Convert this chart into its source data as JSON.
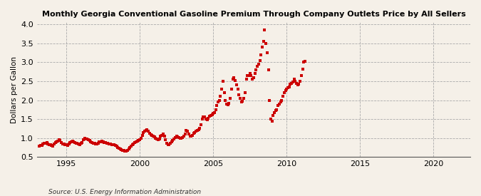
{
  "title": "Monthly Georgia Conventional Gasoline Premium Through Company Outlets Price by All Sellers",
  "ylabel": "Dollars per Gallon",
  "source": "Source: U.S. Energy Information Administration",
  "background_color": "#f5f0e8",
  "point_color": "#cc0000",
  "ylim": [
    0.5,
    4.05
  ],
  "xlim": [
    1993.0,
    2022.5
  ],
  "yticks": [
    0.5,
    1.0,
    1.5,
    2.0,
    2.5,
    3.0,
    3.5,
    4.0
  ],
  "xticks": [
    1995,
    2000,
    2005,
    2010,
    2015,
    2020
  ],
  "data": [
    [
      1993.17,
      0.79
    ],
    [
      1993.25,
      0.8
    ],
    [
      1993.33,
      0.81
    ],
    [
      1993.42,
      0.84
    ],
    [
      1993.5,
      0.86
    ],
    [
      1993.58,
      0.87
    ],
    [
      1993.67,
      0.88
    ],
    [
      1993.75,
      0.85
    ],
    [
      1993.83,
      0.83
    ],
    [
      1993.92,
      0.82
    ],
    [
      1994.0,
      0.8
    ],
    [
      1994.08,
      0.79
    ],
    [
      1994.17,
      0.84
    ],
    [
      1994.25,
      0.88
    ],
    [
      1994.33,
      0.9
    ],
    [
      1994.42,
      0.92
    ],
    [
      1994.5,
      0.95
    ],
    [
      1994.58,
      0.93
    ],
    [
      1994.67,
      0.88
    ],
    [
      1994.75,
      0.85
    ],
    [
      1994.83,
      0.84
    ],
    [
      1994.92,
      0.83
    ],
    [
      1995.0,
      0.82
    ],
    [
      1995.08,
      0.81
    ],
    [
      1995.17,
      0.85
    ],
    [
      1995.25,
      0.88
    ],
    [
      1995.33,
      0.9
    ],
    [
      1995.42,
      0.92
    ],
    [
      1995.5,
      0.91
    ],
    [
      1995.58,
      0.89
    ],
    [
      1995.67,
      0.87
    ],
    [
      1995.75,
      0.86
    ],
    [
      1995.83,
      0.84
    ],
    [
      1995.92,
      0.83
    ],
    [
      1996.0,
      0.86
    ],
    [
      1996.08,
      0.89
    ],
    [
      1996.17,
      0.95
    ],
    [
      1996.25,
      1.0
    ],
    [
      1996.33,
      0.98
    ],
    [
      1996.42,
      0.97
    ],
    [
      1996.5,
      0.96
    ],
    [
      1996.58,
      0.94
    ],
    [
      1996.67,
      0.9
    ],
    [
      1996.75,
      0.88
    ],
    [
      1996.83,
      0.87
    ],
    [
      1996.92,
      0.86
    ],
    [
      1997.0,
      0.85
    ],
    [
      1997.08,
      0.84
    ],
    [
      1997.17,
      0.87
    ],
    [
      1997.25,
      0.9
    ],
    [
      1997.33,
      0.91
    ],
    [
      1997.42,
      0.92
    ],
    [
      1997.5,
      0.91
    ],
    [
      1997.58,
      0.89
    ],
    [
      1997.67,
      0.88
    ],
    [
      1997.75,
      0.87
    ],
    [
      1997.83,
      0.86
    ],
    [
      1997.92,
      0.85
    ],
    [
      1998.0,
      0.84
    ],
    [
      1998.08,
      0.83
    ],
    [
      1998.17,
      0.82
    ],
    [
      1998.25,
      0.82
    ],
    [
      1998.33,
      0.8
    ],
    [
      1998.42,
      0.78
    ],
    [
      1998.5,
      0.76
    ],
    [
      1998.58,
      0.74
    ],
    [
      1998.67,
      0.72
    ],
    [
      1998.75,
      0.7
    ],
    [
      1998.83,
      0.68
    ],
    [
      1998.92,
      0.67
    ],
    [
      1999.0,
      0.66
    ],
    [
      1999.08,
      0.65
    ],
    [
      1999.17,
      0.68
    ],
    [
      1999.25,
      0.72
    ],
    [
      1999.33,
      0.75
    ],
    [
      1999.42,
      0.78
    ],
    [
      1999.5,
      0.82
    ],
    [
      1999.58,
      0.85
    ],
    [
      1999.67,
      0.88
    ],
    [
      1999.75,
      0.9
    ],
    [
      1999.83,
      0.92
    ],
    [
      1999.92,
      0.94
    ],
    [
      2000.0,
      0.96
    ],
    [
      2000.08,
      1.0
    ],
    [
      2000.17,
      1.08
    ],
    [
      2000.25,
      1.15
    ],
    [
      2000.33,
      1.18
    ],
    [
      2000.42,
      1.2
    ],
    [
      2000.5,
      1.22
    ],
    [
      2000.58,
      1.19
    ],
    [
      2000.67,
      1.12
    ],
    [
      2000.75,
      1.09
    ],
    [
      2000.83,
      1.07
    ],
    [
      2000.92,
      1.05
    ],
    [
      2001.0,
      1.03
    ],
    [
      2001.08,
      1.0
    ],
    [
      2001.17,
      0.98
    ],
    [
      2001.25,
      0.95
    ],
    [
      2001.33,
      0.97
    ],
    [
      2001.42,
      1.05
    ],
    [
      2001.5,
      1.08
    ],
    [
      2001.58,
      1.1
    ],
    [
      2001.67,
      1.05
    ],
    [
      2001.75,
      0.96
    ],
    [
      2001.83,
      0.87
    ],
    [
      2001.92,
      0.83
    ],
    [
      2002.0,
      0.82
    ],
    [
      2002.08,
      0.86
    ],
    [
      2002.17,
      0.9
    ],
    [
      2002.25,
      0.94
    ],
    [
      2002.33,
      0.98
    ],
    [
      2002.42,
      1.02
    ],
    [
      2002.5,
      1.05
    ],
    [
      2002.58,
      1.03
    ],
    [
      2002.67,
      1.02
    ],
    [
      2002.75,
      1.0
    ],
    [
      2002.83,
      1.0
    ],
    [
      2002.92,
      1.02
    ],
    [
      2003.0,
      1.05
    ],
    [
      2003.08,
      1.1
    ],
    [
      2003.17,
      1.2
    ],
    [
      2003.25,
      1.18
    ],
    [
      2003.33,
      1.1
    ],
    [
      2003.42,
      1.05
    ],
    [
      2003.5,
      1.05
    ],
    [
      2003.58,
      1.08
    ],
    [
      2003.67,
      1.12
    ],
    [
      2003.75,
      1.15
    ],
    [
      2003.83,
      1.18
    ],
    [
      2003.92,
      1.2
    ],
    [
      2004.0,
      1.22
    ],
    [
      2004.08,
      1.25
    ],
    [
      2004.17,
      1.35
    ],
    [
      2004.25,
      1.5
    ],
    [
      2004.33,
      1.55
    ],
    [
      2004.42,
      1.55
    ],
    [
      2004.5,
      1.5
    ],
    [
      2004.58,
      1.48
    ],
    [
      2004.67,
      1.52
    ],
    [
      2004.75,
      1.58
    ],
    [
      2004.83,
      1.6
    ],
    [
      2004.92,
      1.62
    ],
    [
      2005.0,
      1.65
    ],
    [
      2005.08,
      1.68
    ],
    [
      2005.17,
      1.75
    ],
    [
      2005.25,
      1.85
    ],
    [
      2005.33,
      1.95
    ],
    [
      2005.42,
      2.0
    ],
    [
      2005.5,
      2.1
    ],
    [
      2005.58,
      2.3
    ],
    [
      2005.67,
      2.5
    ],
    [
      2005.75,
      2.2
    ],
    [
      2005.83,
      2.0
    ],
    [
      2005.92,
      1.9
    ],
    [
      2006.0,
      1.88
    ],
    [
      2006.08,
      1.92
    ],
    [
      2006.17,
      2.05
    ],
    [
      2006.25,
      2.3
    ],
    [
      2006.33,
      2.55
    ],
    [
      2006.42,
      2.6
    ],
    [
      2006.5,
      2.52
    ],
    [
      2006.58,
      2.4
    ],
    [
      2006.67,
      2.3
    ],
    [
      2006.75,
      2.15
    ],
    [
      2006.83,
      2.05
    ],
    [
      2006.92,
      1.95
    ],
    [
      2007.0,
      1.98
    ],
    [
      2007.08,
      2.05
    ],
    [
      2007.17,
      2.2
    ],
    [
      2007.25,
      2.55
    ],
    [
      2007.33,
      2.65
    ],
    [
      2007.42,
      2.65
    ],
    [
      2007.5,
      2.7
    ],
    [
      2007.58,
      2.65
    ],
    [
      2007.67,
      2.55
    ],
    [
      2007.75,
      2.6
    ],
    [
      2007.83,
      2.7
    ],
    [
      2007.92,
      2.8
    ],
    [
      2008.0,
      2.9
    ],
    [
      2008.08,
      2.95
    ],
    [
      2008.17,
      3.05
    ],
    [
      2008.25,
      3.2
    ],
    [
      2008.33,
      3.4
    ],
    [
      2008.42,
      3.55
    ],
    [
      2008.5,
      3.85
    ],
    [
      2008.58,
      3.5
    ],
    [
      2008.67,
      3.25
    ],
    [
      2008.75,
      2.8
    ],
    [
      2008.83,
      2.0
    ],
    [
      2008.92,
      1.5
    ],
    [
      2009.0,
      1.45
    ],
    [
      2009.08,
      1.6
    ],
    [
      2009.17,
      1.68
    ],
    [
      2009.25,
      1.72
    ],
    [
      2009.33,
      1.75
    ],
    [
      2009.42,
      1.85
    ],
    [
      2009.5,
      1.9
    ],
    [
      2009.58,
      1.95
    ],
    [
      2009.67,
      2.0
    ],
    [
      2009.75,
      2.1
    ],
    [
      2009.83,
      2.2
    ],
    [
      2009.92,
      2.25
    ],
    [
      2010.0,
      2.3
    ],
    [
      2010.08,
      2.32
    ],
    [
      2010.17,
      2.35
    ],
    [
      2010.25,
      2.42
    ],
    [
      2010.33,
      2.45
    ],
    [
      2010.42,
      2.48
    ],
    [
      2010.5,
      2.55
    ],
    [
      2010.58,
      2.5
    ],
    [
      2010.67,
      2.45
    ],
    [
      2010.75,
      2.4
    ],
    [
      2010.83,
      2.42
    ],
    [
      2010.92,
      2.5
    ],
    [
      2011.0,
      2.65
    ],
    [
      2011.08,
      2.82
    ],
    [
      2011.17,
      3.0
    ],
    [
      2011.25,
      3.02
    ]
  ]
}
